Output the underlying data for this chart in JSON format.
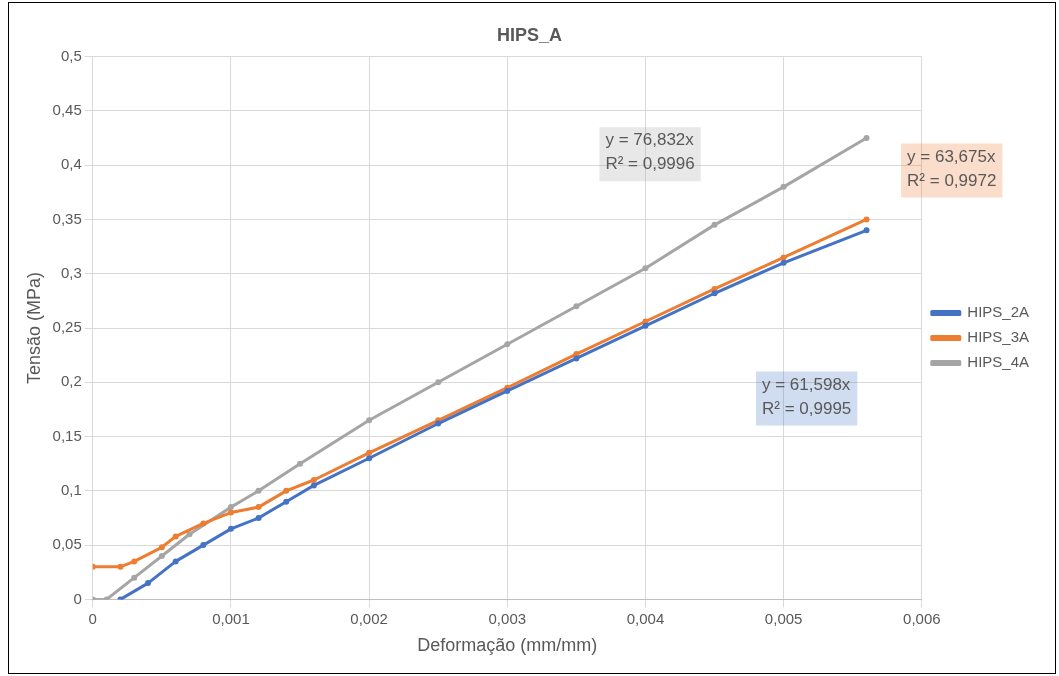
{
  "chart_data": {
    "type": "line",
    "title": "HIPS_A",
    "xlabel": "Deformação (mm/mm)",
    "ylabel": "Tensão (MPa)",
    "series": [
      {
        "name": "HIPS_2A",
        "color": "#4472c4",
        "x": [
          0.0002,
          0.0004,
          0.0006,
          0.0008,
          0.001,
          0.0012,
          0.0014,
          0.0016,
          0.002,
          0.0025,
          0.003,
          0.0035,
          0.004,
          0.0045,
          0.005,
          0.0056
        ],
        "values": [
          0,
          0.015,
          0.035,
          0.05,
          0.065,
          0.075,
          0.09,
          0.105,
          0.13,
          0.162,
          0.192,
          0.222,
          0.252,
          0.282,
          0.31,
          0.34
        ]
      },
      {
        "name": "HIPS_3A",
        "color": "#ed7d31",
        "x": [
          0,
          0.0002,
          0.0003,
          0.0005,
          0.0006,
          0.0008,
          0.001,
          0.0012,
          0.0014,
          0.0016,
          0.002,
          0.0025,
          0.003,
          0.0035,
          0.004,
          0.0045,
          0.005,
          0.0056
        ],
        "values": [
          0.03,
          0.03,
          0.035,
          0.048,
          0.058,
          0.07,
          0.08,
          0.085,
          0.1,
          0.11,
          0.135,
          0.165,
          0.195,
          0.226,
          0.256,
          0.286,
          0.315,
          0.35
        ]
      },
      {
        "name": "HIPS_4A",
        "color": "#a5a5a5",
        "x": [
          0,
          0.0001,
          0.0003,
          0.0005,
          0.0007,
          0.001,
          0.0012,
          0.0015,
          0.002,
          0.0025,
          0.003,
          0.0035,
          0.004,
          0.0045,
          0.005,
          0.0056
        ],
        "values": [
          0,
          0,
          0.02,
          0.04,
          0.06,
          0.085,
          0.1,
          0.125,
          0.165,
          0.2,
          0.235,
          0.27,
          0.305,
          0.345,
          0.38,
          0.425
        ]
      }
    ],
    "annotations": [
      "y = 61,598x\nR² = 0,9995",
      "y = 63,675x\nR² = 0,9972",
      "y = 76,832x\nR² = 0,9996"
    ],
    "xlim": [
      0,
      0.006
    ],
    "xticks": [
      0,
      {
        "value": 0.001,
        "label": "0,001"
      },
      {
        "value": 0.002,
        "label": "0,002"
      },
      {
        "value": 0.003,
        "label": "0,003"
      },
      {
        "value": 0.004,
        "label": "0,004"
      },
      {
        "value": 0.005,
        "label": "0,005"
      },
      {
        "value": 0.006,
        "label": "0,006"
      }
    ],
    "ylim": [
      0,
      0.5
    ],
    "yticks": [
      0,
      {
        "value": 0.05,
        "label": "0,05"
      },
      {
        "value": 0.1,
        "label": "0,1"
      },
      {
        "value": 0.15,
        "label": "0,15"
      },
      {
        "value": 0.2,
        "label": "0,2"
      },
      {
        "value": 0.25,
        "label": "0,25"
      },
      {
        "value": 0.3,
        "label": "0,3"
      },
      {
        "value": 0.35,
        "label": "0,35"
      },
      {
        "value": 0.4,
        "label": "0,4"
      },
      {
        "value": 0.45,
        "label": "0,45"
      },
      {
        "value": 0.5,
        "label": "0,5"
      }
    ],
    "grid": true,
    "legend": "right",
    "marker": "circle",
    "line_style": "solid"
  }
}
